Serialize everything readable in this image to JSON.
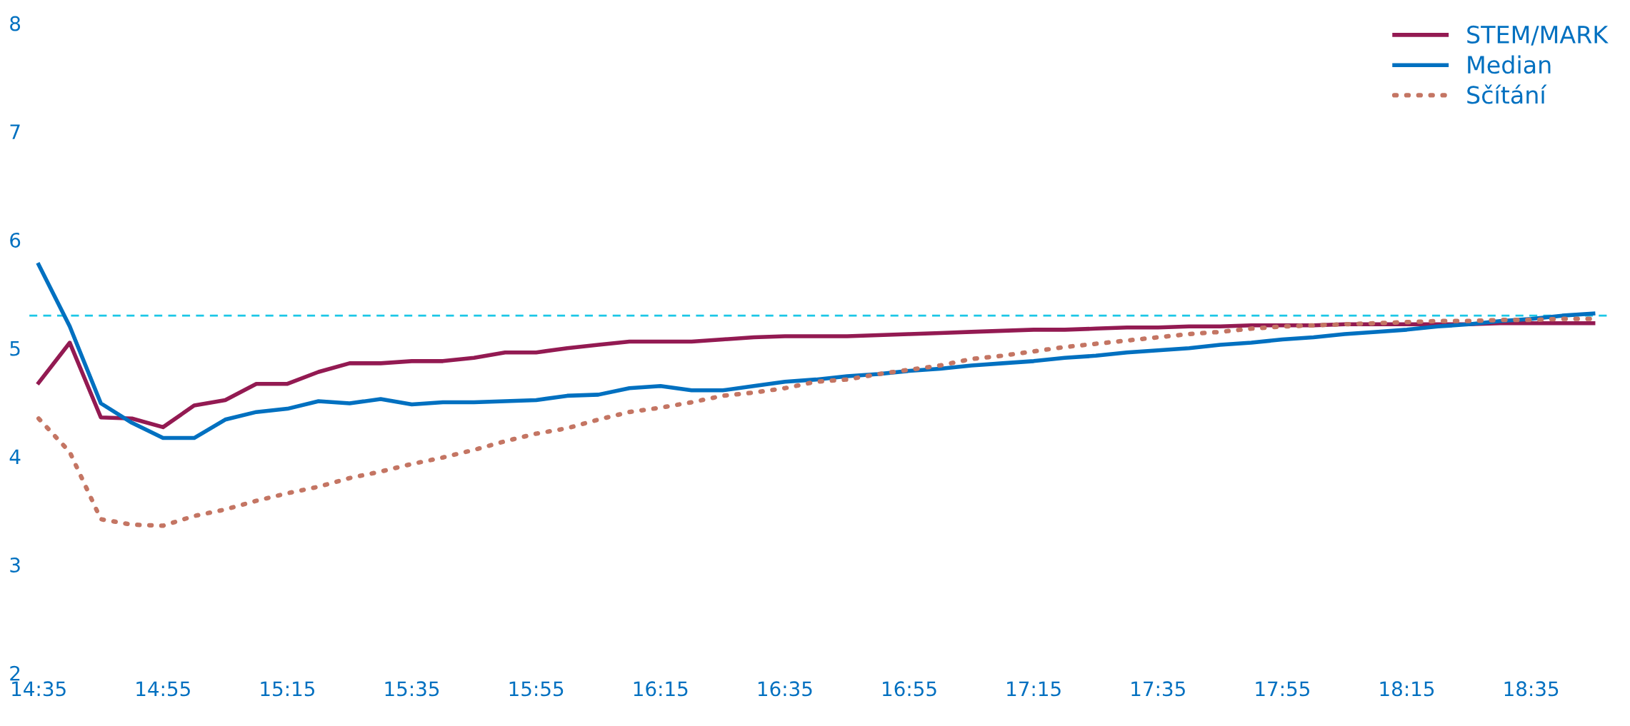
{
  "chart_data": {
    "type": "line",
    "categories": [
      "14:35",
      null,
      null,
      null,
      "14:55",
      null,
      null,
      null,
      "15:15",
      null,
      null,
      null,
      "15:35",
      null,
      null,
      null,
      "15:55",
      null,
      null,
      null,
      "16:15",
      null,
      null,
      null,
      "16:35",
      null,
      null,
      null,
      "16:55",
      null,
      null,
      null,
      "17:15",
      null,
      null,
      null,
      "17:35",
      null,
      null,
      null,
      "17:55",
      null,
      null,
      null,
      "18:15",
      null,
      null,
      null,
      "18:35",
      null,
      null
    ],
    "series": [
      {
        "name": "STEM/MARK",
        "color": "#931a52",
        "line_style": "solid",
        "values": [
          4.68,
          5.05,
          4.36,
          4.35,
          4.27,
          4.47,
          4.52,
          4.67,
          4.67,
          4.78,
          4.86,
          4.86,
          4.88,
          4.88,
          4.91,
          4.96,
          4.96,
          5.0,
          5.03,
          5.06,
          5.06,
          5.06,
          5.08,
          5.1,
          5.11,
          5.11,
          5.11,
          5.12,
          5.13,
          5.14,
          5.15,
          5.16,
          5.17,
          5.17,
          5.18,
          5.19,
          5.19,
          5.2,
          5.2,
          5.21,
          5.21,
          5.21,
          5.22,
          5.22,
          5.22,
          5.22,
          5.22,
          5.23,
          5.23,
          5.23,
          5.23
        ]
      },
      {
        "name": "Median",
        "color": "#0070c0",
        "line_style": "solid",
        "values": [
          5.77,
          5.2,
          4.49,
          4.31,
          4.17,
          4.17,
          4.34,
          4.41,
          4.44,
          4.51,
          4.49,
          4.53,
          4.48,
          4.5,
          4.5,
          4.51,
          4.52,
          4.56,
          4.57,
          4.63,
          4.65,
          4.61,
          4.61,
          4.65,
          4.69,
          4.71,
          4.74,
          4.76,
          4.79,
          4.81,
          4.84,
          4.86,
          4.88,
          4.91,
          4.93,
          4.96,
          4.98,
          5.0,
          5.03,
          5.05,
          5.08,
          5.1,
          5.13,
          5.15,
          5.17,
          5.2,
          5.22,
          5.25,
          5.27,
          5.3,
          5.32
        ]
      },
      {
        "name": "Sčítání",
        "color": "#c47563",
        "line_style": "dotted",
        "values": [
          4.35,
          4.04,
          3.42,
          3.37,
          3.36,
          3.45,
          3.51,
          3.59,
          3.66,
          3.72,
          3.8,
          3.86,
          3.93,
          3.99,
          4.06,
          4.14,
          4.21,
          4.26,
          4.34,
          4.41,
          4.45,
          4.5,
          4.56,
          4.59,
          4.63,
          4.69,
          4.71,
          4.76,
          4.8,
          4.84,
          4.9,
          4.93,
          4.97,
          5.01,
          5.04,
          5.07,
          5.1,
          5.13,
          5.15,
          5.18,
          5.2,
          5.21,
          5.22,
          5.23,
          5.24,
          5.25,
          5.25,
          5.26,
          5.26,
          5.27,
          5.27
        ]
      }
    ],
    "ylim": [
      2,
      8
    ],
    "yticks": [
      2,
      3,
      4,
      5,
      6,
      7,
      8
    ],
    "ref_lines": [
      {
        "axis": "y",
        "value": 5.3,
        "color": "#1cc7e6",
        "line_style": "dashed"
      }
    ],
    "grid": false,
    "legend": "top right",
    "marker": "none"
  }
}
